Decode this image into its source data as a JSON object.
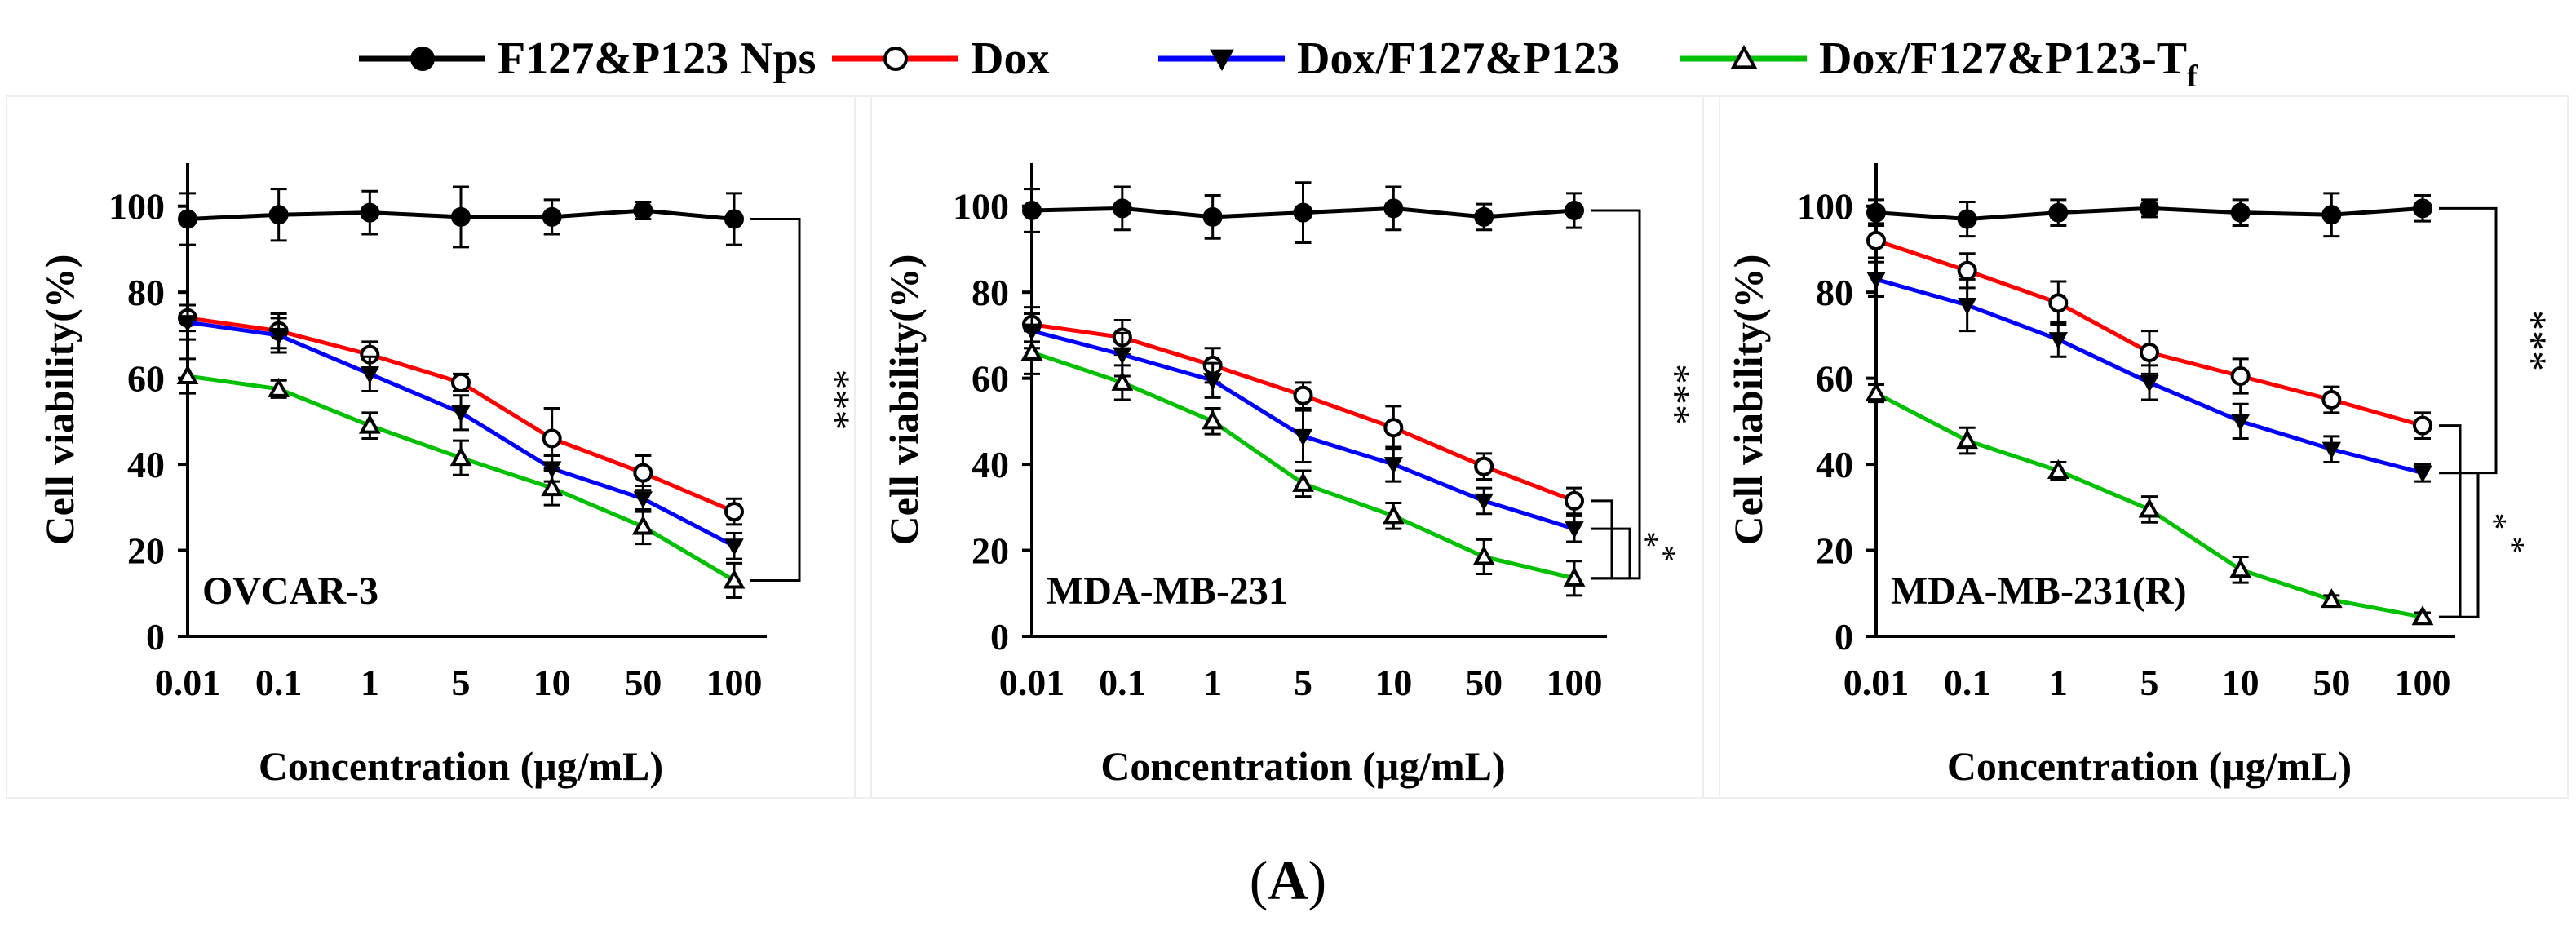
{
  "legend": [
    {
      "name": "F127&P123 Nps",
      "color": "#000000",
      "marker": "circle-filled"
    },
    {
      "name": "Dox",
      "color": "#ff0000",
      "marker": "circle-open"
    },
    {
      "name": "Dox/F127&P123",
      "color": "#0000ff",
      "marker": "triangle-down-filled"
    },
    {
      "name": "Dox/F127&P123-T",
      "subscript": "f",
      "color": "#00c000",
      "marker": "triangle-up-open"
    }
  ],
  "caption": {
    "open": "(",
    "letter": "A",
    "close": ")"
  },
  "chart_data": [
    {
      "type": "line",
      "panel_label": "OVCAR-3",
      "xlabel": "Concentration (μg/mL)",
      "ylabel": "Cell viability(%)",
      "categories": [
        "0.01",
        "0.1",
        "1",
        "5",
        "10",
        "50",
        "100"
      ],
      "ylim": [
        0,
        110
      ],
      "yticks": [
        0,
        20,
        40,
        60,
        80,
        100
      ],
      "series": [
        {
          "name": "F127&P123 Nps",
          "values": [
            97,
            98,
            98.5,
            97.5,
            97.5,
            99,
            97
          ],
          "errors": [
            6,
            6,
            5,
            7,
            4,
            2,
            6
          ]
        },
        {
          "name": "Dox",
          "values": [
            74,
            71,
            65.5,
            59,
            46,
            38,
            29
          ],
          "errors": [
            3,
            4,
            3,
            2,
            7,
            4,
            3
          ]
        },
        {
          "name": "Dox/F127&P123",
          "values": [
            73,
            70,
            61,
            52,
            39,
            32,
            21
          ],
          "errors": [
            4,
            4,
            4,
            4,
            3,
            3,
            3
          ]
        },
        {
          "name": "Dox/F127&P123-Tf",
          "values": [
            60.5,
            57.5,
            49,
            41.5,
            34.5,
            25.5,
            13
          ],
          "errors": [
            4,
            2,
            3,
            4,
            4,
            4,
            4
          ]
        }
      ],
      "significance": [
        {
          "label": "***",
          "from": "F127&P123 Nps",
          "to": "Dox/F127&P123-Tf"
        }
      ]
    },
    {
      "type": "line",
      "panel_label": "MDA-MB-231",
      "xlabel": "Concentration (μg/mL)",
      "ylabel": "Cell viability(%)",
      "categories": [
        "0.01",
        "0.1",
        "1",
        "5",
        "10",
        "50",
        "100"
      ],
      "ylim": [
        0,
        110
      ],
      "yticks": [
        0,
        20,
        40,
        60,
        80,
        100
      ],
      "series": [
        {
          "name": "F127&P123 Nps",
          "values": [
            99,
            99.5,
            97.5,
            98.5,
            99.5,
            97.5,
            99
          ],
          "errors": [
            5,
            5,
            5,
            7,
            5,
            3,
            4
          ]
        },
        {
          "name": "Dox",
          "values": [
            72.5,
            69.5,
            63,
            56,
            48.5,
            39.5,
            31.5
          ],
          "errors": [
            4,
            4,
            4,
            3,
            5,
            3,
            3
          ]
        },
        {
          "name": "Dox/F127&P123",
          "values": [
            71,
            65.5,
            59.5,
            46.5,
            40,
            31.5,
            25
          ],
          "errors": [
            4,
            5,
            4,
            6,
            4,
            3,
            3
          ]
        },
        {
          "name": "Dox/F127&P123-Tf",
          "values": [
            66,
            59,
            50,
            35.5,
            28,
            18.5,
            13.5
          ],
          "errors": [
            5,
            4,
            3,
            3,
            3,
            4,
            4
          ]
        }
      ],
      "significance": [
        {
          "label": "***",
          "from": "F127&P123 Nps",
          "to": "Dox/F127&P123-Tf"
        },
        {
          "label": "*",
          "from": "Dox",
          "to": "Dox/F127&P123-Tf"
        },
        {
          "label": "*",
          "from": "Dox/F127&P123",
          "to": "Dox/F127&P123-Tf"
        }
      ]
    },
    {
      "type": "line",
      "panel_label": "MDA-MB-231(R)",
      "xlabel": "Concentration (μg/mL)",
      "ylabel": "Cell viability(%)",
      "categories": [
        "0.01",
        "0.1",
        "1",
        "5",
        "10",
        "50",
        "100"
      ],
      "ylim": [
        0,
        110
      ],
      "yticks": [
        0,
        20,
        40,
        60,
        80,
        100
      ],
      "series": [
        {
          "name": "F127&P123 Nps",
          "values": [
            98.5,
            97,
            98.5,
            99.5,
            98.5,
            98,
            99.5
          ],
          "errors": [
            3,
            4,
            3,
            2,
            3,
            5,
            3
          ]
        },
        {
          "name": "Dox",
          "values": [
            92,
            85,
            77.5,
            66,
            60.5,
            55,
            49
          ],
          "errors": [
            4,
            4,
            5,
            5,
            4,
            3,
            3
          ]
        },
        {
          "name": "Dox/F127&P123",
          "values": [
            83,
            77,
            69,
            59,
            50,
            43.5,
            38
          ],
          "errors": [
            4,
            6,
            4,
            4,
            4,
            3,
            2
          ]
        },
        {
          "name": "Dox/F127&P123-Tf",
          "values": [
            56.5,
            45.5,
            38.5,
            29.5,
            15.5,
            8.5,
            4.5
          ],
          "errors": [
            2,
            3,
            2,
            3,
            3,
            1,
            1
          ]
        }
      ],
      "significance": [
        {
          "label": "***",
          "from": "F127&P123 Nps",
          "to": "Dox/F127&P123"
        },
        {
          "label": "*",
          "from": "Dox",
          "to": "Dox/F127&P123-Tf"
        },
        {
          "label": "*",
          "from": "Dox/F127&P123",
          "to": "Dox/F127&P123-Tf"
        }
      ]
    }
  ]
}
